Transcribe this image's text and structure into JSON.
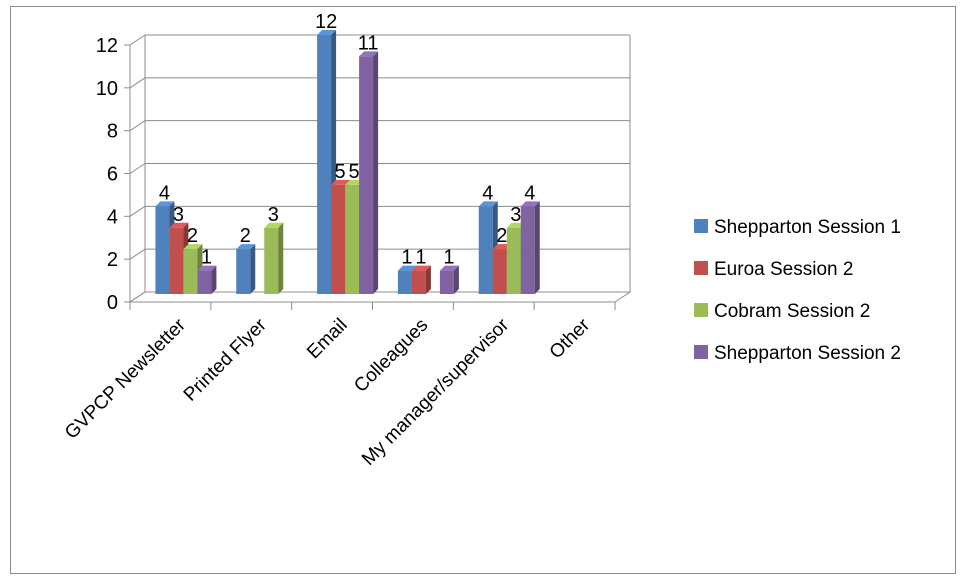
{
  "chart_data": {
    "type": "bar",
    "title": "",
    "xlabel": "",
    "ylabel": "",
    "ylim": [
      0,
      12
    ],
    "yticks": [
      0,
      2,
      4,
      6,
      8,
      10,
      12
    ],
    "grid": true,
    "legend_position": "right",
    "style": "3d-clustered-column",
    "categories": [
      "GVPCP Newsletter",
      "Printed Flyer",
      "Email",
      "Colleagues",
      "My manager/supervisor",
      "Other"
    ],
    "series": [
      {
        "name": "Shepparton Session 1",
        "color": "#4f81bd",
        "values": [
          4,
          2,
          12,
          1,
          4,
          null
        ]
      },
      {
        "name": "Euroa Session 2",
        "color": "#c0504d",
        "values": [
          3,
          null,
          5,
          1,
          2,
          null
        ]
      },
      {
        "name": "Cobram Session 2",
        "color": "#9bbb59",
        "values": [
          2,
          3,
          5,
          null,
          3,
          null
        ]
      },
      {
        "name": "Shepparton Session 2",
        "color": "#8064a2",
        "values": [
          1,
          null,
          11,
          1,
          4,
          null
        ]
      }
    ]
  }
}
